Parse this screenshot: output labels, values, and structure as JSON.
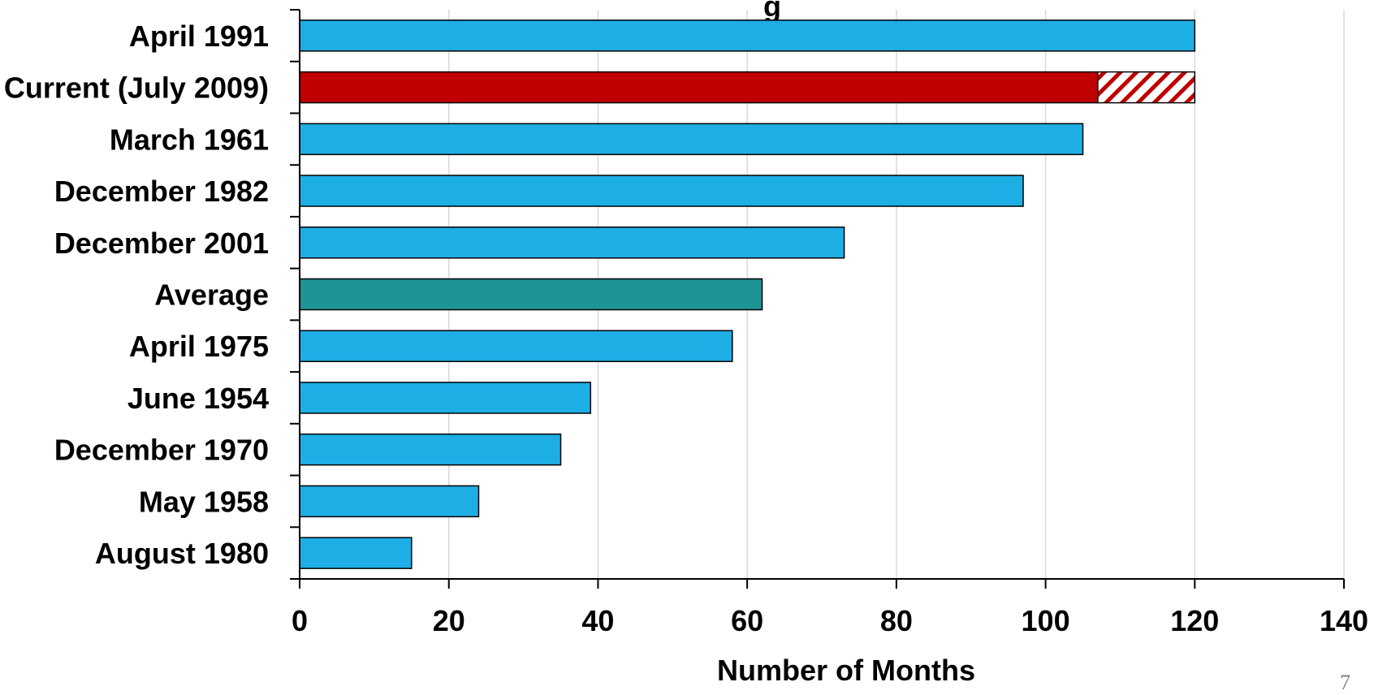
{
  "chart_data": {
    "type": "bar",
    "orientation": "horizontal",
    "title_fragment": "g",
    "xlabel": "Number of Months",
    "ylabel": "",
    "xlim": [
      0,
      140
    ],
    "xticks": [
      0,
      20,
      40,
      60,
      80,
      100,
      120,
      140
    ],
    "grid": "vertical",
    "legend": "none",
    "categories": [
      "April 1991",
      "Current (July 2009)",
      "March 1961",
      "December 1982",
      "December 2001",
      "Average",
      "April 1975",
      "June 1954",
      "December 1970",
      "May 1958",
      "August 1980"
    ],
    "values": [
      120,
      107,
      105,
      97,
      73,
      62,
      58,
      39,
      35,
      24,
      15
    ],
    "extensions": [
      {
        "category": "Current (July 2009)",
        "from": 107,
        "to": 120,
        "style": "hatched"
      }
    ],
    "colors": {
      "default": "#1eaee6",
      "current": "#c00000",
      "average": "#1f9498",
      "gridline": "#d9d9d9"
    }
  },
  "page_number": "7"
}
